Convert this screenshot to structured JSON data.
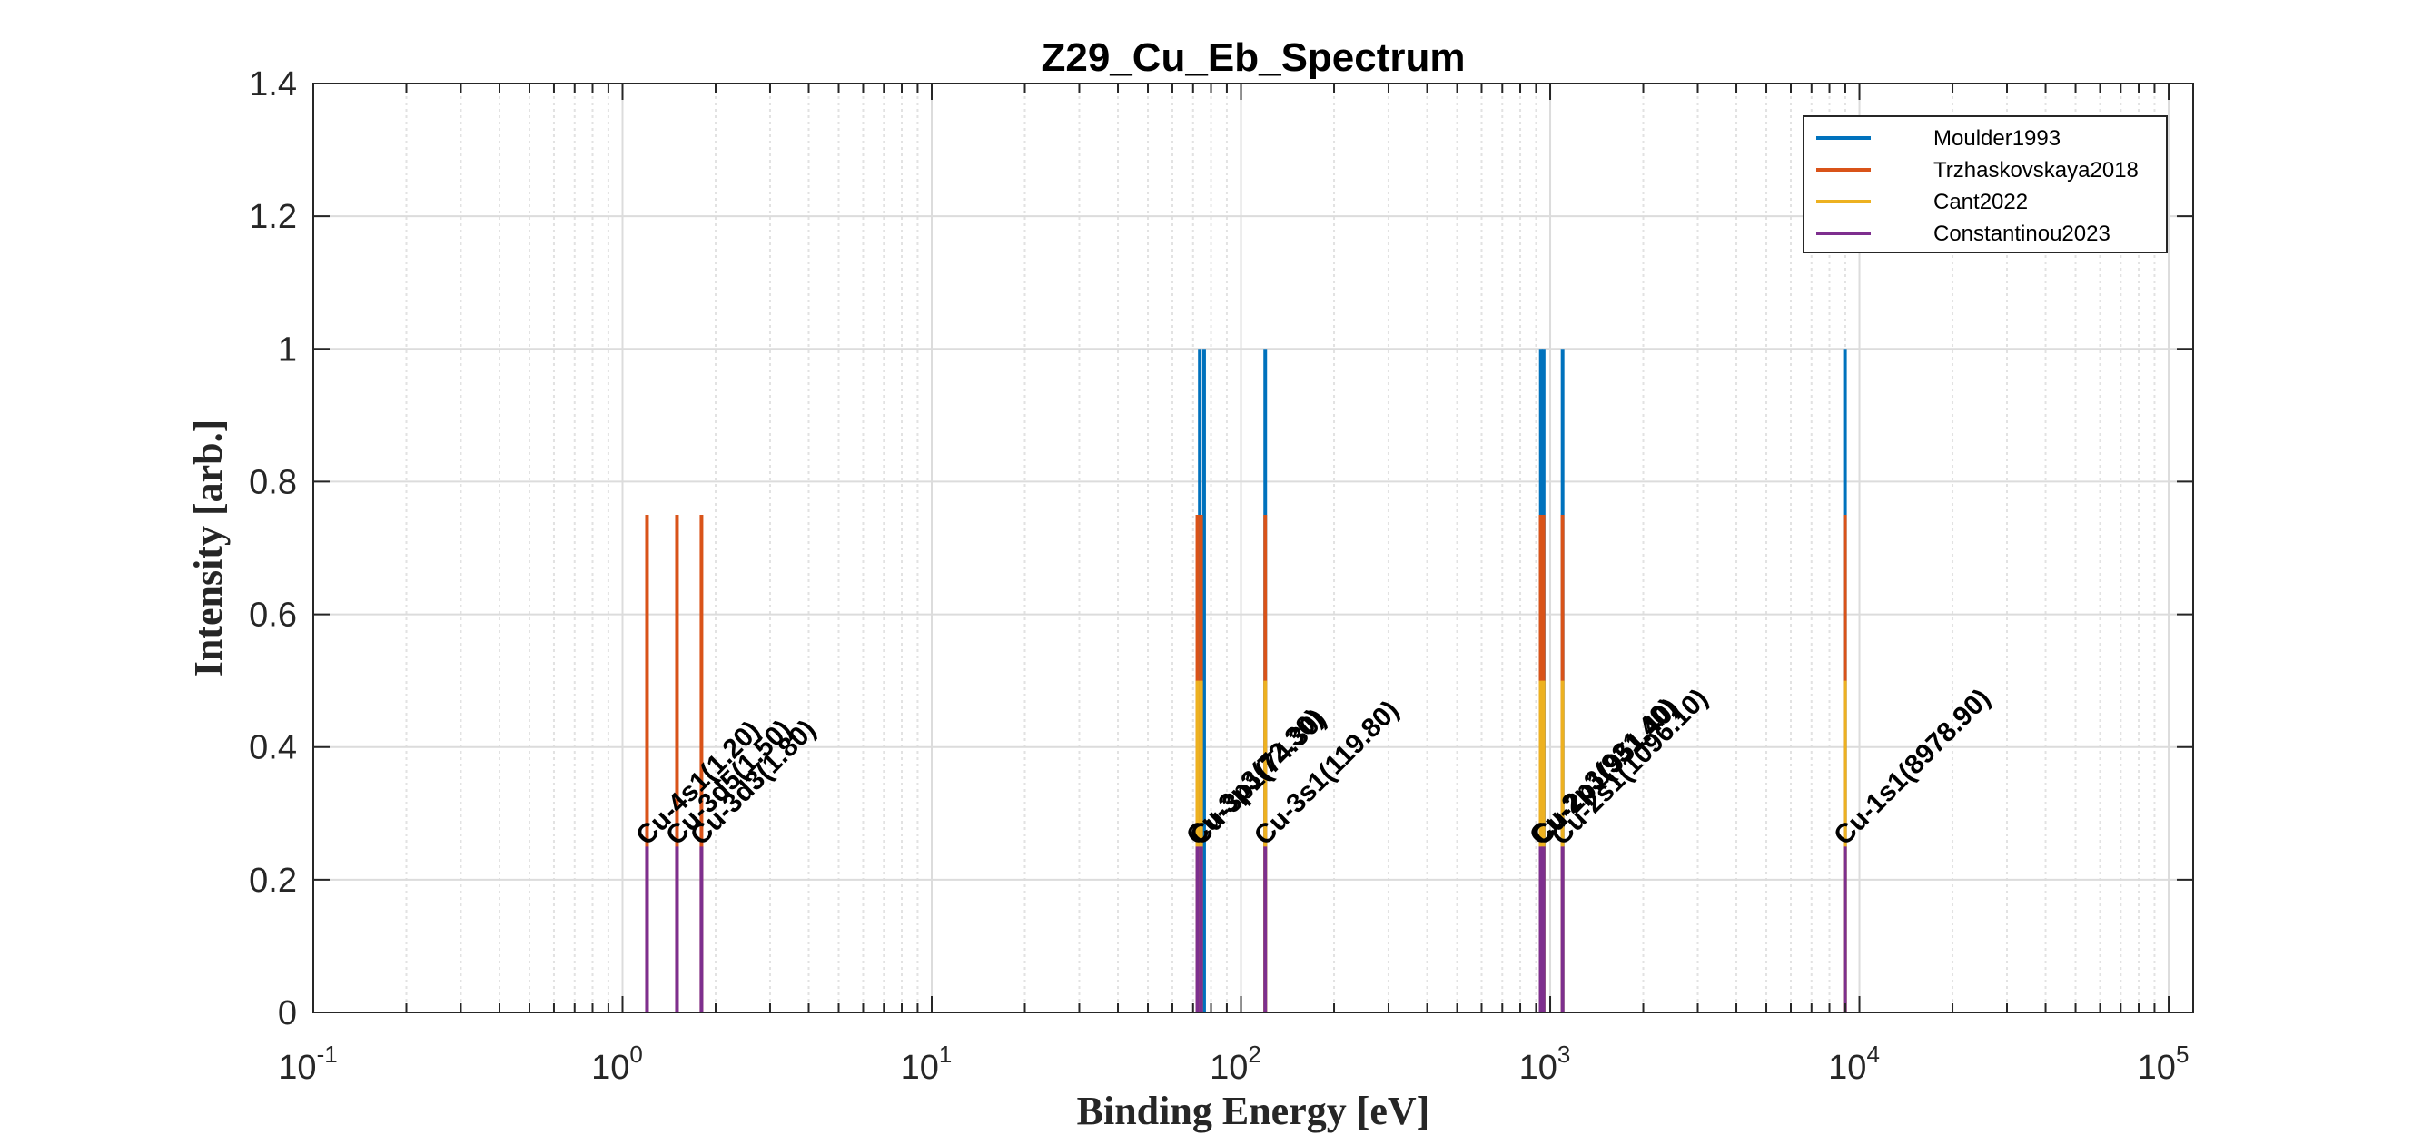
{
  "chart_data": {
    "type": "bar",
    "title": "Z29_Cu_Eb_Spectrum",
    "xlabel": "Binding Energy [eV]",
    "ylabel": "Intensity [arb.]",
    "xscale": "log",
    "xlim": [
      0.1,
      120000
    ],
    "ylim": [
      0,
      1.4
    ],
    "x_ticks": [
      {
        "base": "10",
        "exp": "-1",
        "value": 0.1
      },
      {
        "base": "10",
        "exp": "0",
        "value": 1
      },
      {
        "base": "10",
        "exp": "1",
        "value": 10
      },
      {
        "base": "10",
        "exp": "2",
        "value": 100
      },
      {
        "base": "10",
        "exp": "3",
        "value": 1000
      },
      {
        "base": "10",
        "exp": "4",
        "value": 10000
      },
      {
        "base": "10",
        "exp": "5",
        "value": 100000
      }
    ],
    "y_ticks": [
      {
        "value": 0,
        "label": "0"
      },
      {
        "value": 0.2,
        "label": "0.2"
      },
      {
        "value": 0.4,
        "label": "0.4"
      },
      {
        "value": 0.6,
        "label": "0.6"
      },
      {
        "value": 0.8,
        "label": "0.8"
      },
      {
        "value": 1,
        "label": "1"
      },
      {
        "value": 1.2,
        "label": "1.2"
      },
      {
        "value": 1.4,
        "label": "1.4"
      }
    ],
    "grid": true,
    "legend_position": "top-right",
    "series": [
      {
        "name": "Moulder1993",
        "color": "#0072BD",
        "height": 1.0,
        "energies": [
          73.6,
          76.0,
          119.8,
          932.7,
          952.5,
          1096.7,
          8978.9
        ]
      },
      {
        "name": "Trzhaskovskaya2018",
        "color": "#D95319",
        "height": 0.75,
        "energies": [
          1.2,
          1.5,
          1.8,
          72.3,
          74.3,
          119.8,
          931.4,
          951.4,
          1096.1,
          8978.9
        ]
      },
      {
        "name": "Cant2022",
        "color": "#EDB120",
        "height": 0.5,
        "energies": [
          72.3,
          74.3,
          119.8,
          931.4,
          951.4,
          1096.1,
          8978.9
        ]
      },
      {
        "name": "Constantinou2023",
        "color": "#7E2F8E",
        "height": 0.25,
        "energies": [
          1.2,
          1.5,
          1.8,
          72.3,
          74.3,
          119.8,
          931.4,
          951.4,
          1096.1,
          8978.9
        ]
      }
    ],
    "peak_labels": [
      {
        "text": "Cu-4s1(1.20)",
        "x": 1.2,
        "y": 0.25
      },
      {
        "text": "Cu-3d5(1.50)",
        "x": 1.5,
        "y": 0.25
      },
      {
        "text": "Cu-3d3(1.80)",
        "x": 1.8,
        "y": 0.25
      },
      {
        "text": "Cu-3p3(72.30)",
        "x": 72.3,
        "y": 0.25
      },
      {
        "text": "Cu-3p1(74.30)",
        "x": 74.3,
        "y": 0.25
      },
      {
        "text": "Cu-3s1(119.80)",
        "x": 119.8,
        "y": 0.25
      },
      {
        "text": "Cu-2p3(931.40)",
        "x": 931.4,
        "y": 0.25
      },
      {
        "text": "Cu-2p1(951.40)",
        "x": 951.4,
        "y": 0.25
      },
      {
        "text": "Cu-2s1(1096.10)",
        "x": 1096.1,
        "y": 0.25
      },
      {
        "text": "Cu-1s1(8978.90)",
        "x": 8978.9,
        "y": 0.25
      }
    ]
  }
}
